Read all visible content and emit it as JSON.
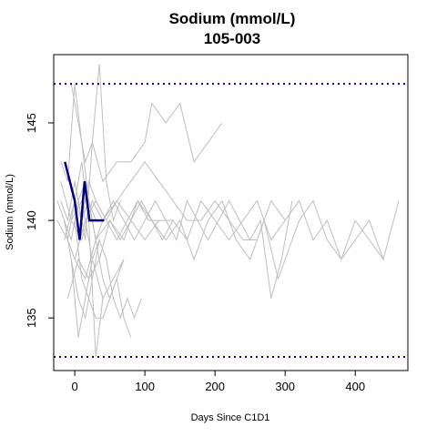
{
  "chart_data": {
    "type": "line",
    "title": "Sodium (mmol/L)",
    "subtitle": "105-003",
    "xlabel": "Days Since C1D1",
    "ylabel": "Sodium (mmol/L)",
    "xlim": [
      -30,
      475
    ],
    "ylim": [
      132.3,
      148.5
    ],
    "x_ticks": [
      0,
      100,
      200,
      300,
      400
    ],
    "y_ticks": [
      135,
      140,
      145
    ],
    "grid": false,
    "reference_lines": [
      {
        "y": 147,
        "style": "dotted",
        "color": "#00008b"
      },
      {
        "y": 133,
        "style": "dotted",
        "color": "#00008b"
      }
    ],
    "colors": {
      "background_series": "#bebebe",
      "highlight_series": "#000080",
      "reference": "#00008b"
    },
    "highlight_series": {
      "x": [
        -14,
        -7,
        0,
        7,
        14,
        21,
        28,
        42
      ],
      "y": [
        143,
        142,
        141,
        139,
        142,
        140,
        140,
        140
      ]
    },
    "background_series": [
      {
        "x": [
          -20,
          -10,
          0,
          10,
          20,
          30,
          40,
          60,
          80,
          100,
          120,
          140,
          160,
          180,
          200,
          220,
          240,
          260,
          280,
          300,
          320,
          340,
          360,
          380,
          400,
          420,
          440,
          462
        ],
        "y": [
          141,
          140,
          142,
          140,
          141,
          139,
          140,
          141,
          140,
          139,
          140,
          140,
          139,
          141,
          140,
          139,
          140,
          141,
          139,
          140,
          141,
          139,
          140,
          138,
          139,
          140,
          138,
          141
        ]
      },
      {
        "x": [
          -15,
          0,
          10,
          20,
          30,
          45,
          60,
          80,
          100,
          120,
          140,
          160,
          180,
          200,
          220,
          240,
          260,
          280,
          300
        ],
        "y": [
          139,
          141,
          140,
          142,
          141,
          140,
          141,
          142,
          143,
          142,
          141,
          140,
          140,
          141,
          140,
          139,
          139,
          141,
          140
        ]
      },
      {
        "x": [
          -5,
          5,
          15,
          25,
          40,
          60,
          80,
          100,
          110,
          130,
          150,
          170,
          190,
          210
        ],
        "y": [
          147,
          145,
          143,
          144,
          142,
          143,
          143,
          144,
          146,
          145,
          146,
          143,
          144,
          145
        ]
      },
      {
        "x": [
          -25,
          -10,
          0,
          15,
          30,
          50,
          70,
          90,
          110,
          130,
          150,
          170,
          190,
          210,
          230,
          250,
          270,
          290,
          310,
          320,
          340,
          360,
          380,
          400,
          420,
          440
        ],
        "y": [
          140,
          139,
          138,
          137,
          139,
          140,
          139,
          141,
          140,
          139,
          140,
          138,
          140,
          141,
          139,
          138,
          140,
          137,
          139,
          140,
          141,
          139,
          138,
          140,
          139,
          138
        ]
      },
      {
        "x": [
          -10,
          5,
          20,
          35,
          50,
          65,
          80,
          95,
          110,
          125,
          140
        ],
        "y": [
          136,
          138,
          137,
          138,
          140,
          139,
          140,
          141,
          140,
          139,
          140
        ]
      },
      {
        "x": [
          -20,
          -5,
          10,
          25,
          40,
          55,
          70,
          85,
          100,
          115,
          130,
          145,
          160,
          175,
          190,
          205,
          220,
          235,
          250,
          265,
          280,
          295,
          310
        ],
        "y": [
          142,
          140,
          139,
          141,
          140,
          141,
          140,
          139,
          140,
          141,
          140,
          139,
          141,
          140,
          139,
          140,
          141,
          140,
          139,
          140,
          136,
          138,
          141
        ]
      },
      {
        "x": [
          0,
          10,
          20,
          30,
          40,
          50,
          60,
          70,
          80
        ],
        "y": [
          140,
          137,
          136,
          135,
          135,
          136,
          137,
          135,
          134
        ]
      },
      {
        "x": [
          5,
          15,
          25,
          35,
          45,
          55,
          65
        ],
        "y": [
          141,
          139,
          144,
          148,
          142,
          140,
          141
        ]
      },
      {
        "x": [
          -5,
          5,
          15,
          25,
          35,
          45,
          55,
          65,
          75,
          85,
          95
        ],
        "y": [
          138,
          136,
          135,
          137,
          139,
          138,
          136,
          135,
          136,
          135,
          136
        ]
      },
      {
        "x": [
          -15,
          -5,
          5,
          15,
          25,
          35
        ],
        "y": [
          140,
          138,
          134,
          136,
          138,
          139
        ]
      },
      {
        "x": [
          0,
          10,
          20,
          30,
          40,
          50,
          60,
          70
        ],
        "y": [
          142,
          140,
          141,
          139,
          137,
          136,
          137,
          138
        ]
      },
      {
        "x": [
          -10,
          0,
          10,
          20,
          30,
          40
        ],
        "y": [
          139,
          141,
          143,
          140,
          133,
          136
        ]
      },
      {
        "x": [
          -20,
          -10,
          0,
          10,
          20,
          30
        ],
        "y": [
          143,
          142,
          147,
          144,
          141,
          140
        ]
      },
      {
        "x": [
          -5,
          10,
          25,
          40,
          55,
          70
        ],
        "y": [
          140,
          141,
          138,
          136,
          137,
          138
        ]
      },
      {
        "x": [
          0,
          15,
          30,
          45,
          60,
          75,
          90,
          105,
          120
        ],
        "y": [
          138,
          140,
          141,
          140,
          139,
          140,
          141,
          140,
          140
        ]
      },
      {
        "x": [
          -25,
          -15,
          -5,
          5,
          15,
          25
        ],
        "y": [
          141,
          140,
          139,
          141,
          142,
          140
        ]
      }
    ]
  }
}
